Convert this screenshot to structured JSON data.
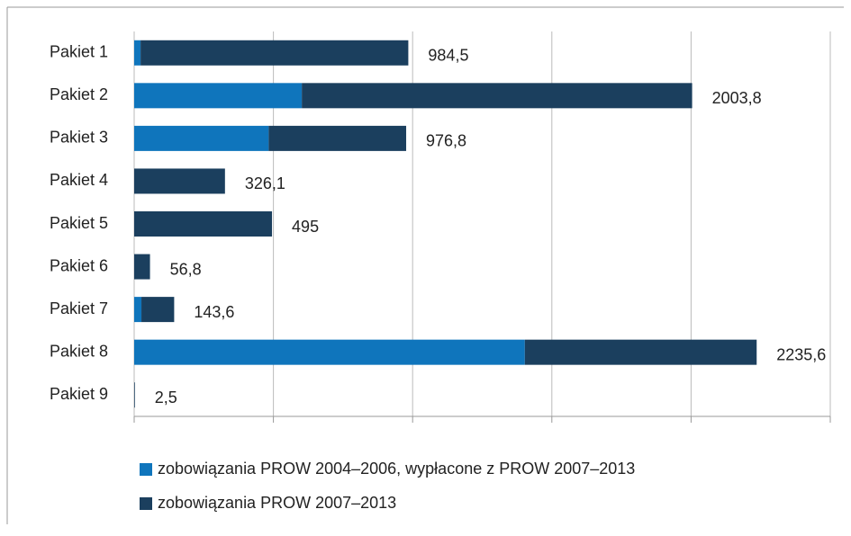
{
  "chart_data": {
    "type": "stacked_barh",
    "categories": [
      "Pakiet 1",
      "Pakiet 2",
      "Pakiet 3",
      "Pakiet 4",
      "Pakiet 5",
      "Pakiet 6",
      "Pakiet 7",
      "Pakiet 8",
      "Pakiet 9"
    ],
    "series": [
      {
        "name": "zobowiązania PROW 2004–2006, wypłacone z PROW 2007–2013",
        "color": "#0f75bc",
        "values": [
          23,
          602,
          483,
          0,
          0,
          0,
          26,
          1403,
          0
        ]
      },
      {
        "name": "zobowiązania PROW 2007–2013",
        "color": "#1b3f5e",
        "values": [
          961.5,
          1401.8,
          493.8,
          326.1,
          495,
          56.8,
          117.6,
          832.6,
          2.5
        ]
      }
    ],
    "totals": [
      984.5,
      2003.8,
      976.8,
      326.1,
      495,
      56.8,
      143.6,
      2235.6,
      2.5
    ],
    "total_labels": [
      "984,5",
      "2003,8",
      "976,8",
      "326,1",
      "495",
      "56,8",
      "143,6",
      "2235,6",
      "2,5"
    ],
    "xlim": [
      0,
      2500
    ],
    "xticks": [
      0,
      500,
      1000,
      1500,
      2000,
      2500
    ],
    "grid": true,
    "legend": "bottom"
  }
}
